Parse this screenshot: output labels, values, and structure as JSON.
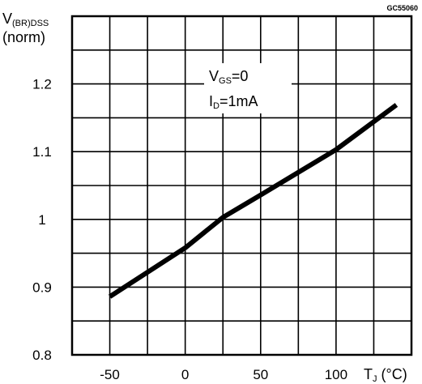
{
  "figure_code": "GC55060",
  "chart_data": {
    "type": "line",
    "ylabel": {
      "main": "V",
      "sub": "(BR)DSS",
      "second": "(norm)"
    },
    "xlabel": {
      "main": "T",
      "sub": "J",
      "unit": "(°C)"
    },
    "x_ticks": [
      -50,
      0,
      50,
      100
    ],
    "x_tick_labels": [
      "-50",
      "0",
      "50",
      "100"
    ],
    "y_ticks": [
      0.8,
      0.9,
      1,
      1.1,
      1.2
    ],
    "y_tick_labels": [
      "0.8",
      "0.9",
      "1",
      "1.1",
      "1.2"
    ],
    "xlim": [
      -75,
      150
    ],
    "ylim": [
      0.8,
      1.3
    ],
    "x_grid_step": 25,
    "y_grid_step": 0.05,
    "grid": true,
    "annotations": [
      {
        "main": "V",
        "sub": "GS",
        "rest": "=0"
      },
      {
        "main": "I",
        "sub": "D",
        "rest": "=1mA"
      }
    ],
    "series": [
      {
        "x": [
          -50,
          0,
          25,
          50,
          100,
          140
        ],
        "y": [
          0.886,
          0.958,
          1.003,
          1.036,
          1.103,
          1.169
        ]
      }
    ]
  }
}
